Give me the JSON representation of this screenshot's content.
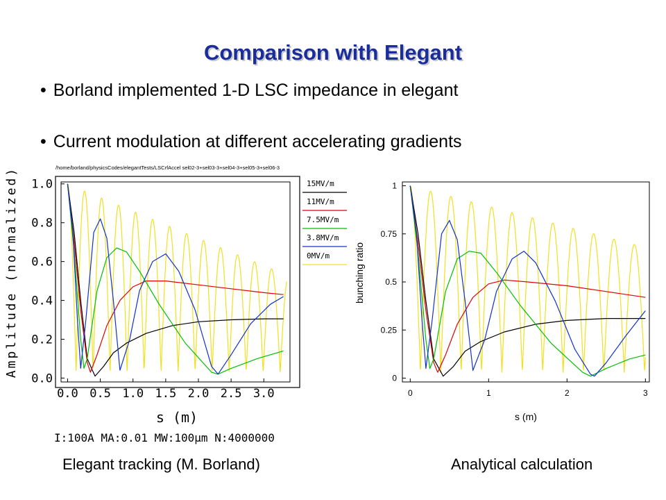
{
  "slide": {
    "title": "Comparison with Elegant",
    "bullets": [
      "Borland implemented 1-D LSC impedance in elegant",
      "Current modulation at different accelerating gradients"
    ],
    "captions": [
      "Elegant tracking (M. Borland)",
      "Analytical calculation"
    ]
  },
  "colors": {
    "title": "#1a2d9a",
    "series": [
      "#f0e020",
      "#000000",
      "#e00000",
      "#00c000",
      "#1030d0"
    ]
  },
  "chart_data": [
    {
      "type": "line",
      "path_label": "/home/borland/physicsCodes/elegantTests/LSCrfAccel sel02-3+sel03-3+sel04-3+sel05-3+sel06-3",
      "xlabel": "s (m)",
      "ylabel": "Amplitude (normalized)",
      "xlim": [
        -0.1,
        3.4
      ],
      "ylim": [
        -0.02,
        1.01
      ],
      "x_ticks": [
        "0.0",
        "0.5",
        "1.0",
        "1.5",
        "2.0",
        "2.5",
        "3.0"
      ],
      "y_ticks": [
        "0.0",
        "0.2",
        "0.4",
        "0.6",
        "0.8",
        "1.0"
      ],
      "legend": [
        "15MV/m",
        "11MV/m",
        "7.5MV/m",
        "3.8MV/m",
        "0MV/m"
      ],
      "legend_position": "right",
      "footer": "I:100A   MA:0.01   MW:100μm   N:4000000",
      "series": [
        {
          "name": "15MV/m",
          "color": "#000000",
          "x": [
            0,
            0.1,
            0.2,
            0.3,
            0.42,
            0.55,
            0.7,
            0.9,
            1.2,
            1.6,
            2.0,
            2.5,
            3.0,
            3.3
          ],
          "y": [
            1.0,
            0.75,
            0.4,
            0.1,
            0.01,
            0.06,
            0.13,
            0.18,
            0.23,
            0.27,
            0.29,
            0.3,
            0.305,
            0.305
          ]
        },
        {
          "name": "11MV/m",
          "color": "#e00000",
          "x": [
            0,
            0.1,
            0.2,
            0.3,
            0.35,
            0.45,
            0.6,
            0.8,
            1.0,
            1.2,
            1.5,
            2.0,
            2.5,
            3.0,
            3.3
          ],
          "y": [
            1.0,
            0.7,
            0.35,
            0.08,
            0.03,
            0.12,
            0.27,
            0.4,
            0.47,
            0.5,
            0.5,
            0.48,
            0.46,
            0.44,
            0.43
          ]
        },
        {
          "name": "7.5MV/m",
          "color": "#00c000",
          "x": [
            0,
            0.1,
            0.2,
            0.25,
            0.3,
            0.45,
            0.6,
            0.75,
            0.9,
            1.1,
            1.4,
            1.8,
            2.2,
            2.3,
            2.5,
            2.9,
            3.3
          ],
          "y": [
            1.0,
            0.65,
            0.2,
            0.05,
            0.1,
            0.45,
            0.62,
            0.67,
            0.65,
            0.55,
            0.38,
            0.18,
            0.03,
            0.02,
            0.05,
            0.1,
            0.14
          ]
        },
        {
          "name": "3.8MV/m",
          "color": "#1030d0",
          "x": [
            0,
            0.08,
            0.15,
            0.2,
            0.28,
            0.4,
            0.5,
            0.6,
            0.7,
            0.8,
            0.95,
            1.1,
            1.3,
            1.5,
            1.7,
            1.95,
            2.2,
            2.3,
            2.5,
            2.8,
            3.1,
            3.3
          ],
          "y": [
            1.0,
            0.75,
            0.3,
            0.05,
            0.3,
            0.75,
            0.82,
            0.72,
            0.4,
            0.04,
            0.2,
            0.45,
            0.6,
            0.64,
            0.55,
            0.35,
            0.06,
            0.02,
            0.12,
            0.28,
            0.38,
            0.42
          ]
        },
        {
          "name": "0MV/m",
          "color": "#f0e020",
          "yellow_osc": {
            "period": 0.26,
            "amplitude": [
              1.0,
              0.53
            ],
            "floor": 0.03
          }
        }
      ]
    },
    {
      "type": "line",
      "xlabel": "s (m)",
      "ylabel": "bunching ratio",
      "xlim": [
        -0.1,
        3.05
      ],
      "ylim": [
        -0.02,
        1.02
      ],
      "x_ticks": [
        "0",
        "1",
        "2",
        "3"
      ],
      "y_ticks": [
        "0",
        "0.25",
        "0.5",
        "0.75",
        "1"
      ],
      "series": [
        {
          "color": "#000000",
          "x": [
            0,
            0.1,
            0.2,
            0.3,
            0.42,
            0.55,
            0.7,
            0.9,
            1.2,
            1.6,
            2.0,
            2.5,
            3.0
          ],
          "y": [
            1.0,
            0.75,
            0.4,
            0.1,
            0.01,
            0.06,
            0.14,
            0.19,
            0.24,
            0.28,
            0.3,
            0.31,
            0.31
          ]
        },
        {
          "color": "#e00000",
          "x": [
            0,
            0.1,
            0.2,
            0.3,
            0.35,
            0.45,
            0.6,
            0.8,
            1.0,
            1.2,
            1.5,
            2.0,
            2.5,
            3.0
          ],
          "y": [
            1.0,
            0.7,
            0.35,
            0.08,
            0.03,
            0.12,
            0.28,
            0.42,
            0.49,
            0.51,
            0.5,
            0.48,
            0.45,
            0.42
          ]
        },
        {
          "color": "#00c000",
          "x": [
            0,
            0.1,
            0.2,
            0.25,
            0.3,
            0.45,
            0.6,
            0.75,
            0.9,
            1.1,
            1.4,
            1.8,
            2.2,
            2.3,
            2.5,
            2.8,
            3.0
          ],
          "y": [
            1.0,
            0.65,
            0.2,
            0.05,
            0.1,
            0.45,
            0.62,
            0.66,
            0.65,
            0.55,
            0.38,
            0.18,
            0.03,
            0.01,
            0.05,
            0.1,
            0.12
          ]
        },
        {
          "color": "#1030d0",
          "x": [
            0,
            0.08,
            0.15,
            0.2,
            0.28,
            0.4,
            0.5,
            0.6,
            0.7,
            0.8,
            0.95,
            1.1,
            1.3,
            1.45,
            1.6,
            1.85,
            2.1,
            2.3,
            2.35,
            2.5,
            2.75,
            3.0
          ],
          "y": [
            1.0,
            0.75,
            0.3,
            0.05,
            0.3,
            0.75,
            0.82,
            0.72,
            0.4,
            0.04,
            0.2,
            0.45,
            0.62,
            0.66,
            0.6,
            0.4,
            0.15,
            0.02,
            0.01,
            0.08,
            0.22,
            0.35
          ]
        },
        {
          "color": "#f0e020",
          "yellow_osc": {
            "period": 0.26,
            "amplitude": [
              1.0,
              0.68
            ],
            "floor": 0.03
          }
        }
      ]
    }
  ]
}
